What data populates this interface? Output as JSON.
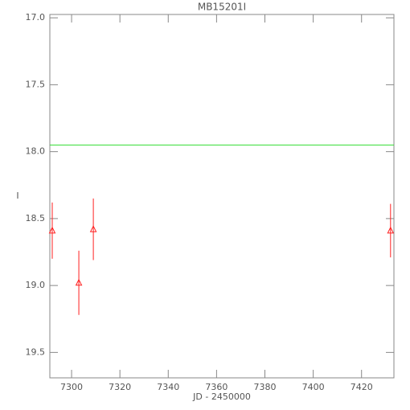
{
  "chart_data": {
    "type": "scatter",
    "title": "MB15201I",
    "x_label": "JD - 2450000",
    "y_label": "I",
    "x": [
      7292,
      7303,
      7309,
      7432
    ],
    "y_inverted": true,
    "series": [
      {
        "color": "#ff2020",
        "values": [
          18.59,
          18.98,
          18.58,
          18.59
        ],
        "errors": [
          0.21,
          0.24,
          0.23,
          0.2
        ]
      }
    ],
    "hlines": [
      {
        "value": 17.95,
        "color": "#33dd33"
      }
    ],
    "xlim": [
      7291,
      7433.4
    ],
    "ylim": [
      16.975,
      19.69
    ],
    "xticks": [
      7300,
      7320,
      7340,
      7360,
      7380,
      7400,
      7420
    ],
    "yticks": [
      {
        "value": 17,
        "label": "17.0"
      },
      {
        "value": 17.5,
        "label": "17.5"
      },
      {
        "value": 18,
        "label": "18.0"
      },
      {
        "value": 18.5,
        "label": "18.5"
      },
      {
        "value": 19,
        "label": "19.0"
      },
      {
        "value": 19.5,
        "label": "19.5"
      }
    ]
  }
}
